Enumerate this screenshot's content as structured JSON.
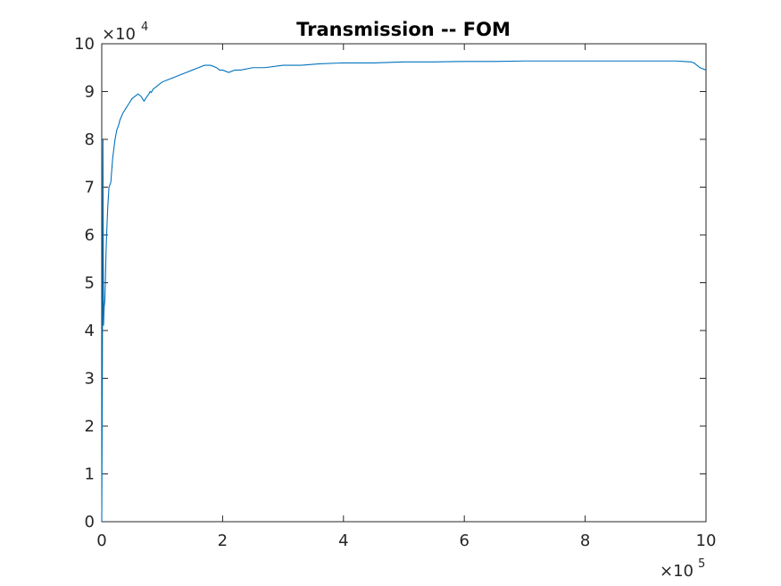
{
  "chart_data": {
    "type": "line",
    "title": "Transmission -- FOM",
    "xlabel": "",
    "ylabel": "",
    "x_multiplier": {
      "base": "×10",
      "exp": "5"
    },
    "y_multiplier": {
      "base": "×10",
      "exp": "4"
    },
    "xlim": [
      0,
      10
    ],
    "ylim": [
      0,
      10
    ],
    "x_ticks": [
      "0",
      "2",
      "4",
      "6",
      "8",
      "10"
    ],
    "y_ticks": [
      "0",
      "1",
      "2",
      "3",
      "4",
      "5",
      "6",
      "7",
      "8",
      "9",
      "10"
    ],
    "grid": false,
    "color": "#0072bd",
    "series": [
      {
        "x": [
          0,
          0.01,
          0.02,
          0.03,
          0.04,
          0.05,
          0.06,
          0.07,
          0.08,
          0.1,
          0.12,
          0.15,
          0.18,
          0.2,
          0.22,
          0.25,
          0.28,
          0.3,
          0.35,
          0.4,
          0.45,
          0.5,
          0.55,
          0.6,
          0.65,
          0.7,
          0.75,
          0.78,
          0.8,
          0.82,
          0.85,
          0.9,
          0.95,
          1.0,
          1.1,
          1.2,
          1.3,
          1.4,
          1.5,
          1.6,
          1.7,
          1.75,
          1.8,
          1.9,
          1.95,
          2.0,
          2.1,
          2.2,
          2.3,
          2.5,
          2.7,
          3.0,
          3.3,
          3.6,
          4.0,
          4.5,
          5.0,
          5.5,
          6.0,
          6.5,
          7.0,
          7.5,
          8.0,
          8.5,
          9.0,
          9.5,
          9.75,
          9.8,
          9.85,
          9.9,
          10.0
        ],
        "y": [
          0,
          3.0,
          8.0,
          4.1,
          4.5,
          4.6,
          5.0,
          5.6,
          6.0,
          6.6,
          7.0,
          7.1,
          7.6,
          7.8,
          8.0,
          8.2,
          8.3,
          8.4,
          8.55,
          8.65,
          8.75,
          8.85,
          8.9,
          8.95,
          8.9,
          8.8,
          8.9,
          8.95,
          9.0,
          8.98,
          9.05,
          9.1,
          9.15,
          9.2,
          9.25,
          9.3,
          9.35,
          9.4,
          9.45,
          9.5,
          9.55,
          9.55,
          9.55,
          9.5,
          9.45,
          9.45,
          9.4,
          9.45,
          9.45,
          9.5,
          9.5,
          9.55,
          9.55,
          9.58,
          9.6,
          9.6,
          9.62,
          9.62,
          9.63,
          9.63,
          9.64,
          9.64,
          9.64,
          9.64,
          9.64,
          9.64,
          9.62,
          9.6,
          9.55,
          9.5,
          9.45
        ]
      }
    ]
  }
}
